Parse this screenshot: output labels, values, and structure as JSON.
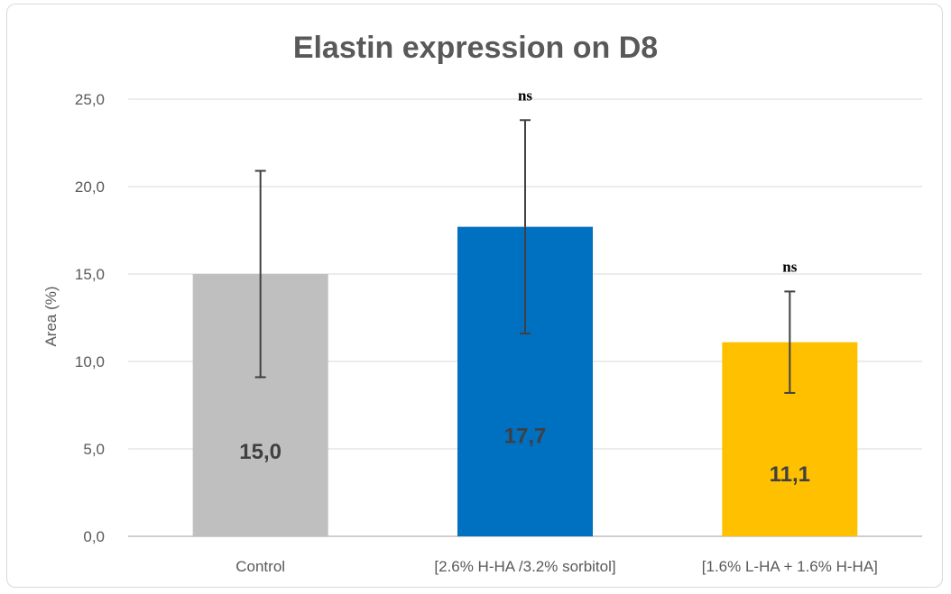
{
  "chart_data": {
    "type": "bar",
    "title": "Elastin expression on D8",
    "xlabel": "",
    "ylabel": "Area (%)",
    "ylim": [
      0,
      25
    ],
    "yticks": [
      "0,0",
      "5,0",
      "10,0",
      "15,0",
      "20,0",
      "25,0"
    ],
    "ytick_values": [
      0,
      5,
      10,
      15,
      20,
      25
    ],
    "grid": true,
    "legend": "none",
    "categories": [
      "Control",
      "[2.6% H-HA /3.2% sorbitol]",
      "[1.6% L-HA + 1.6% H-HA]"
    ],
    "values": [
      15.0,
      17.7,
      11.1
    ],
    "data_labels": [
      "15,0",
      "17,7",
      "11,1"
    ],
    "error_low": [
      9.1,
      11.6,
      8.2
    ],
    "error_high": [
      20.9,
      23.8,
      14.0
    ],
    "annotations": [
      "",
      "ns",
      "ns"
    ],
    "colors": [
      "#bfbfbf",
      "#0070c0",
      "#ffc000"
    ]
  }
}
